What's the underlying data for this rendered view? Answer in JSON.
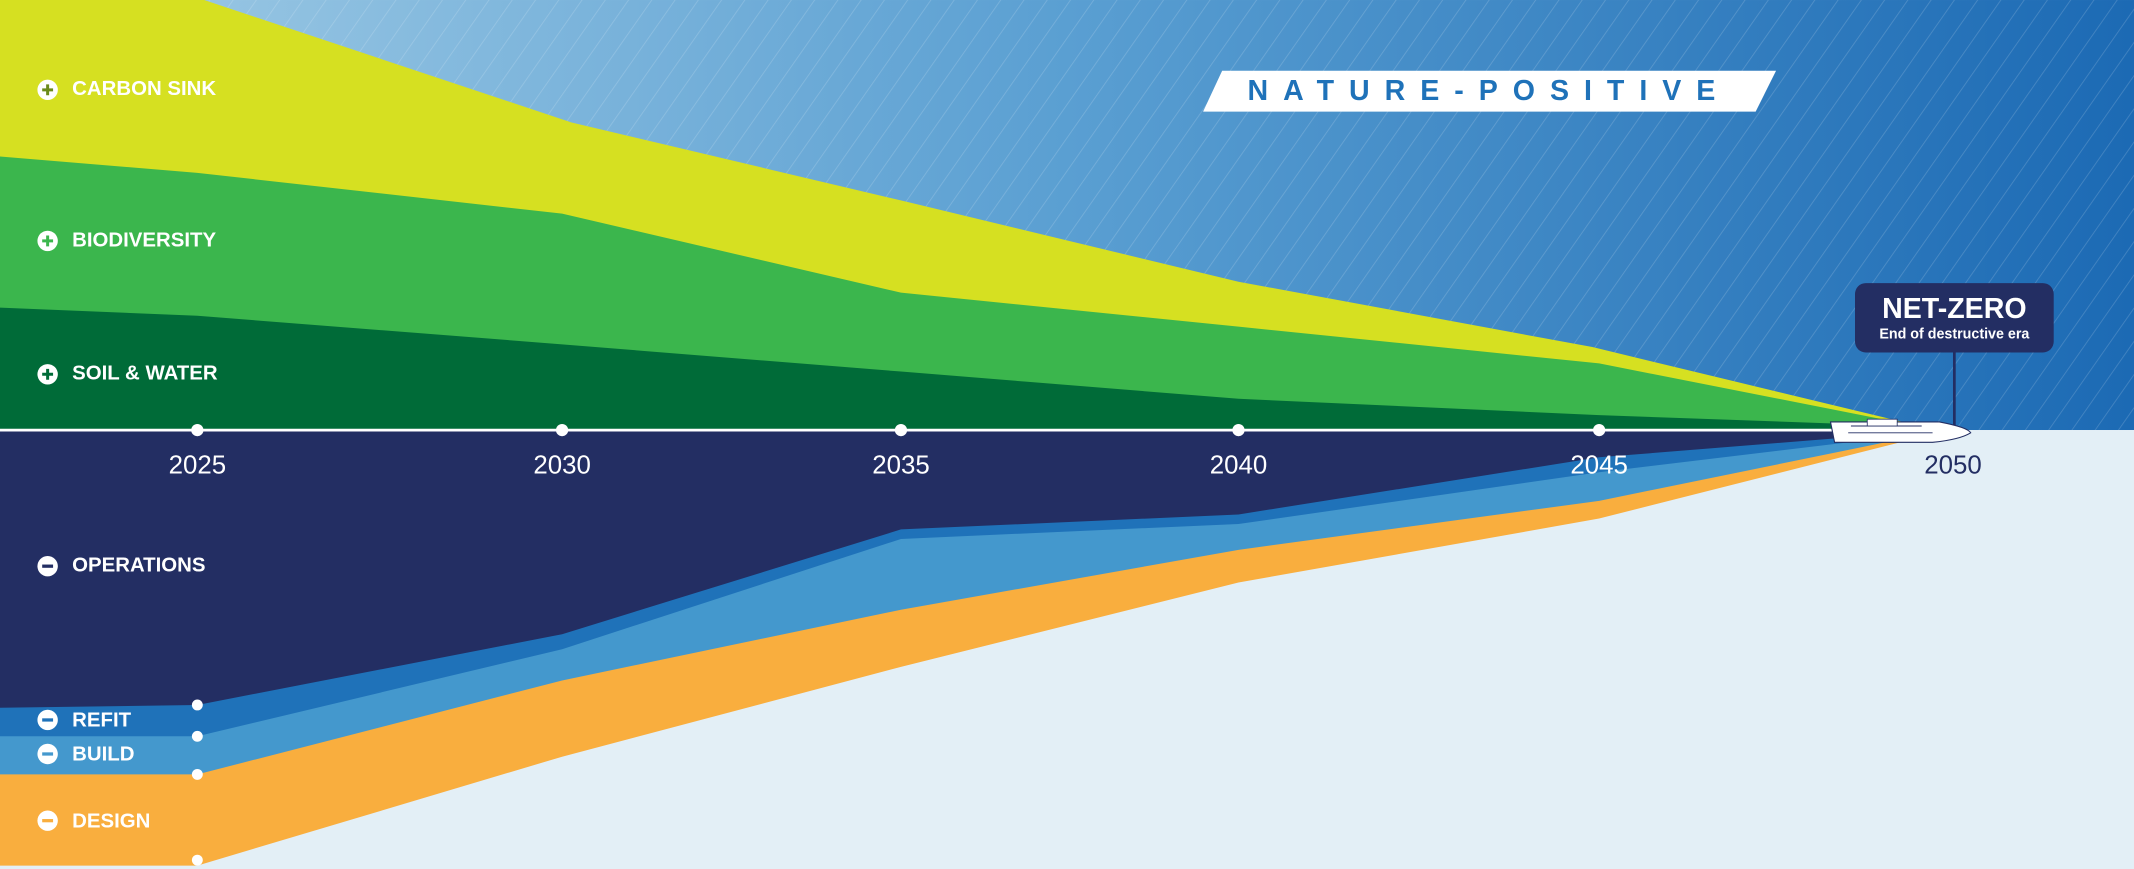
{
  "labels": {
    "positive": [
      "CARBON SINK",
      "BIODIVERSITY",
      "SOIL & WATER"
    ],
    "negative": [
      "OPERATIONS",
      "REFIT",
      "BUILD",
      "DESIGN"
    ]
  },
  "timeline": {
    "years": [
      "2025",
      "2030",
      "2035",
      "2040",
      "2045",
      "2050"
    ]
  },
  "banner": "NATURE-POSITIVE",
  "badge": {
    "title": "NET-ZERO",
    "subtitle": "End of destructive era"
  }
}
